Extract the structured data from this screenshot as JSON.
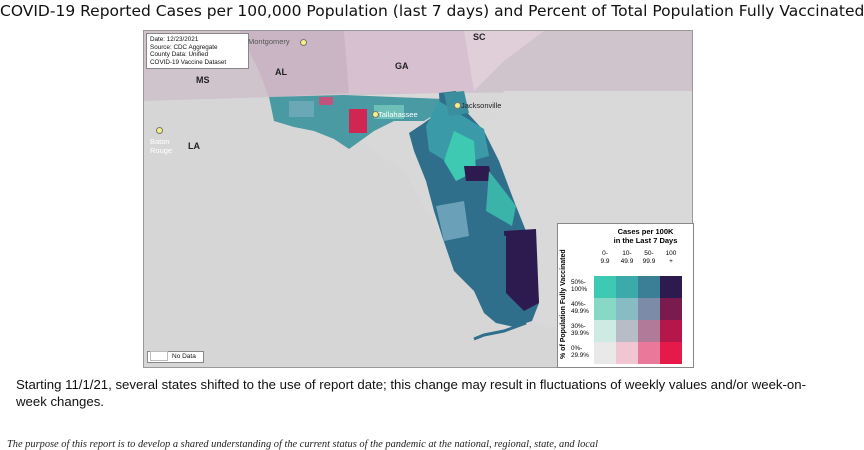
{
  "title": "COVID-19 Reported Cases per 100,000 Population (last 7 days) and Percent of Total Population Fully Vaccinated",
  "source_box": {
    "date": "Date: 12/23/2021",
    "source": "Source: CDC Aggregate",
    "county": "County Data: Unified",
    "vaccine": "COVID-19 Vaccine Dataset"
  },
  "state_labels": {
    "ms": "MS",
    "al": "AL",
    "ga": "GA",
    "sc": "SC",
    "la": "LA"
  },
  "cities": {
    "montgomery": "Montgomery",
    "baton_rouge_1": "Baton",
    "baton_rouge_2": "Rouge",
    "jacksonville": "Jacksonville",
    "tallahassee": "Tallahassee"
  },
  "no_data_label": "No Data",
  "legend": {
    "title_line1": "Cases per 100K",
    "title_line2": "in the Last 7 Days",
    "row_axis_label": "% of Population Fully Vaccinated",
    "columns": [
      {
        "l1": "0-",
        "l2": "9.9"
      },
      {
        "l1": "10-",
        "l2": "49.9"
      },
      {
        "l1": "50-",
        "l2": "99.9"
      },
      {
        "l1": "100",
        "l2": "+"
      }
    ],
    "rows": [
      {
        "l1": "50%-",
        "l2": "100%"
      },
      {
        "l1": "40%-",
        "l2": "49.9%"
      },
      {
        "l1": "30%-",
        "l2": "39.9%"
      },
      {
        "l1": "0%-",
        "l2": "29.9%"
      }
    ],
    "colors": [
      [
        "#3ec9b2",
        "#3aaaaa",
        "#3a7f96",
        "#2d1a4f"
      ],
      [
        "#88d8c6",
        "#88bcc5",
        "#7c8ba8",
        "#7b1a4e"
      ],
      [
        "#cdebe3",
        "#b7bcc7",
        "#b07b99",
        "#b5174b"
      ],
      [
        "#e9e9e9",
        "#efc6d1",
        "#e9789a",
        "#e51a4b"
      ]
    ]
  },
  "note": "Starting 11/1/21, several states shifted to the use of report date; this change may result in fluctuations of weekly values and/or week-on-week changes.",
  "purpose": "The purpose of this report is to develop a shared understanding of the current status of the pandemic at the national, regional, state, and local"
}
